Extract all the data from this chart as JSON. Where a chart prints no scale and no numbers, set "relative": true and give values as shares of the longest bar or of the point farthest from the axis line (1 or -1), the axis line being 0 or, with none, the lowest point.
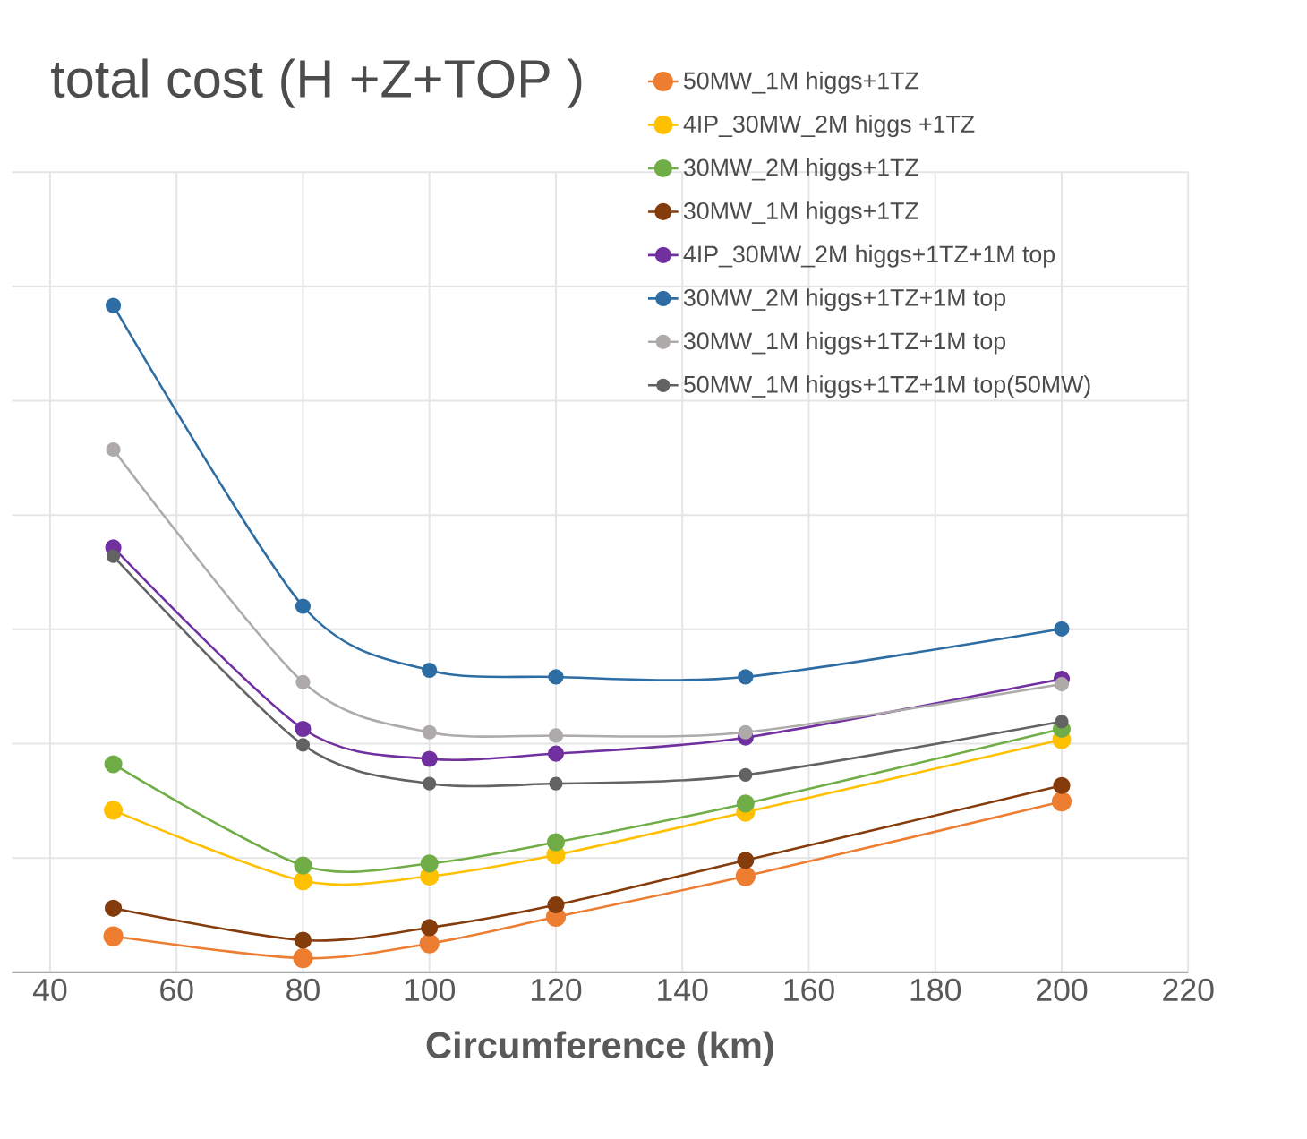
{
  "chart_data": {
    "type": "line",
    "title": "total cost (H +Z+TOP )",
    "xlabel": "Circumference (km)",
    "relative": true,
    "xlim": [
      34,
      220
    ],
    "xticks": [
      40,
      60,
      80,
      100,
      120,
      140,
      160,
      180,
      200,
      220
    ],
    "grid": true,
    "legend": "top right",
    "marker": "circle",
    "line_style": "solid",
    "x": [
      50,
      80,
      100,
      120,
      150,
      200
    ],
    "series": [
      {
        "name": "50MW_1M higgs+1TZ",
        "color": "#ed7d31",
        "values": [
          0.054,
          0.021,
          0.043,
          0.083,
          0.144,
          0.256
        ]
      },
      {
        "name": "4IP_30MW_2M higgs +1TZ",
        "color": "#ffc000",
        "values": [
          0.243,
          0.137,
          0.144,
          0.176,
          0.24,
          0.349
        ]
      },
      {
        "name": "30MW_2M higgs+1TZ",
        "color": "#70ad47",
        "values": [
          0.312,
          0.16,
          0.163,
          0.195,
          0.253,
          0.365
        ]
      },
      {
        "name": "30MW_1M higgs+1TZ",
        "color": "#843c0c",
        "values": [
          0.096,
          0.048,
          0.067,
          0.101,
          0.168,
          0.28
        ]
      },
      {
        "name": "4IP_30MW_2M higgs+1TZ+1M top",
        "color": "#7030a0",
        "values": [
          0.637,
          0.365,
          0.32,
          0.328,
          0.352,
          0.44
        ]
      },
      {
        "name": "30MW_2M higgs+1TZ+1M top",
        "color": "#2e6da4",
        "values": [
          1,
          0.549,
          0.453,
          0.443,
          0.443,
          0.515
        ]
      },
      {
        "name": "30MW_1M higgs+1TZ+1M top",
        "color": "#aeaaaa",
        "values": [
          0.784,
          0.435,
          0.36,
          0.355,
          0.36,
          0.432
        ]
      },
      {
        "name": "50MW_1M higgs+1TZ+1M top(50MW)",
        "color": "#636363",
        "values": [
          0.624,
          0.341,
          0.283,
          0.283,
          0.296,
          0.376
        ]
      }
    ]
  }
}
